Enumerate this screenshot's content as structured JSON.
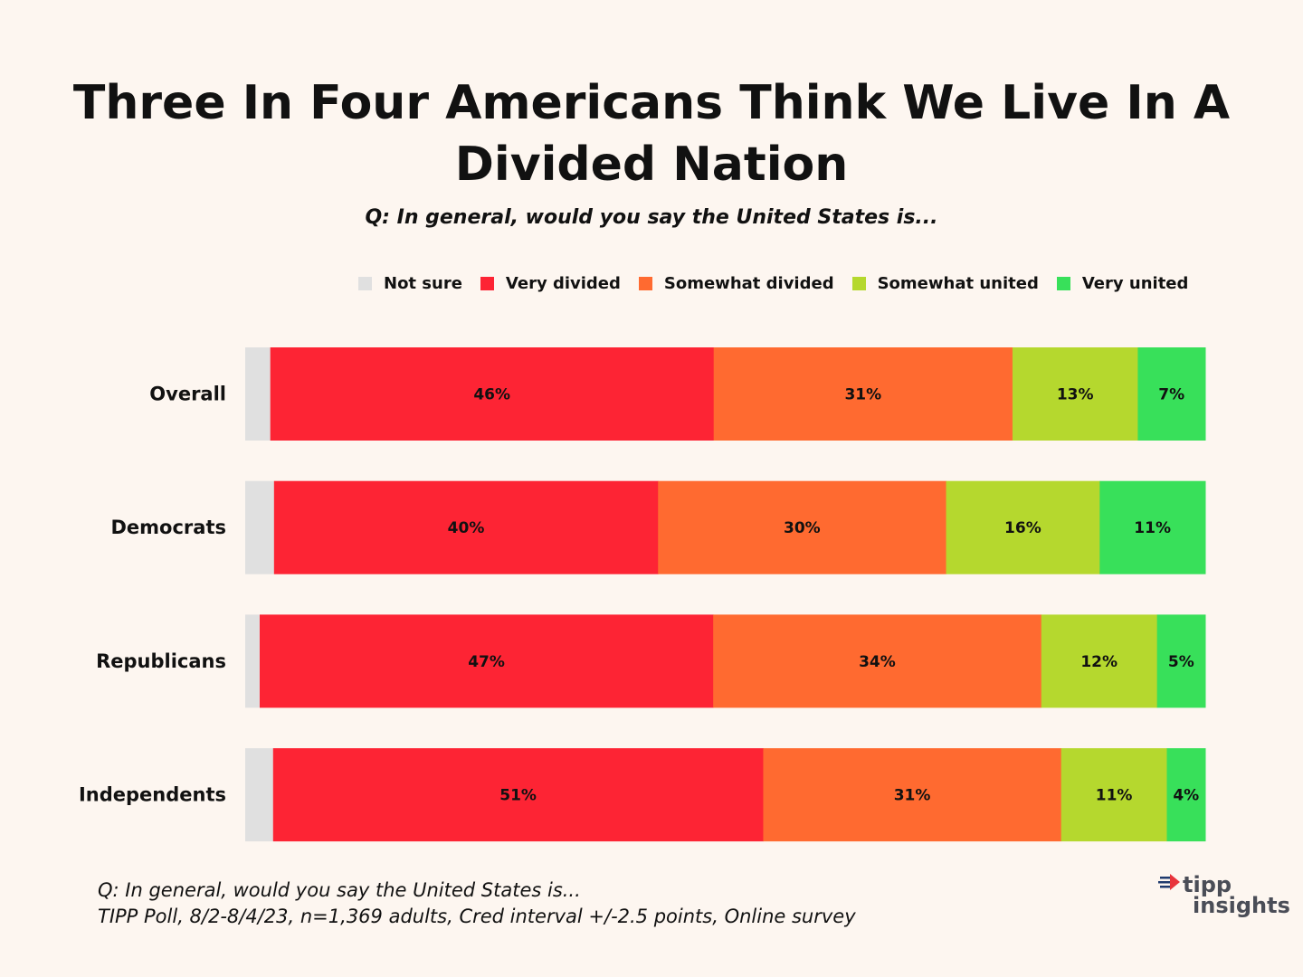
{
  "title_lines": [
    "Three In Four Americans Think We Live In A",
    "Divided Nation"
  ],
  "subtitle": "Q: In general, would you say the United States is...",
  "chart_data": {
    "type": "bar",
    "orientation": "horizontal",
    "stacked": true,
    "categories": [
      "Overall",
      "Democrats",
      "Republicans",
      "Independents"
    ],
    "series": [
      {
        "name": "Not sure",
        "color": "#e0e0e0",
        "values": [
          2.6,
          3.0,
          1.5,
          2.9
        ],
        "labels": [
          "",
          "",
          "",
          ""
        ]
      },
      {
        "name": "Very divided",
        "color": "#fd2434",
        "values": [
          46,
          40,
          47,
          51
        ],
        "labels": [
          "46%",
          "40%",
          "47%",
          "51%"
        ]
      },
      {
        "name": "Somewhat divided",
        "color": "#ff6a30",
        "values": [
          31,
          30,
          34,
          31
        ],
        "labels": [
          "31%",
          "30%",
          "34%",
          "31%"
        ]
      },
      {
        "name": "Somewhat united",
        "color": "#b5d82e",
        "values": [
          13,
          16,
          12,
          11
        ],
        "labels": [
          "13%",
          "16%",
          "12%",
          "11%"
        ]
      },
      {
        "name": "Very united",
        "color": "#38e05a",
        "values": [
          7,
          11,
          5,
          4
        ],
        "labels": [
          "7%",
          "11%",
          "5%",
          "4%"
        ]
      }
    ],
    "legend_position": "top",
    "grid": false
  },
  "source_lines": [
    "Q:  In general, would you say the United States is...",
    "TIPP Poll, 8/2-8/4/23, n=1,369 adults, Cred interval +/-2.5 points, Online survey"
  ],
  "logo": {
    "word1": "tipp",
    "word2": "insights"
  }
}
